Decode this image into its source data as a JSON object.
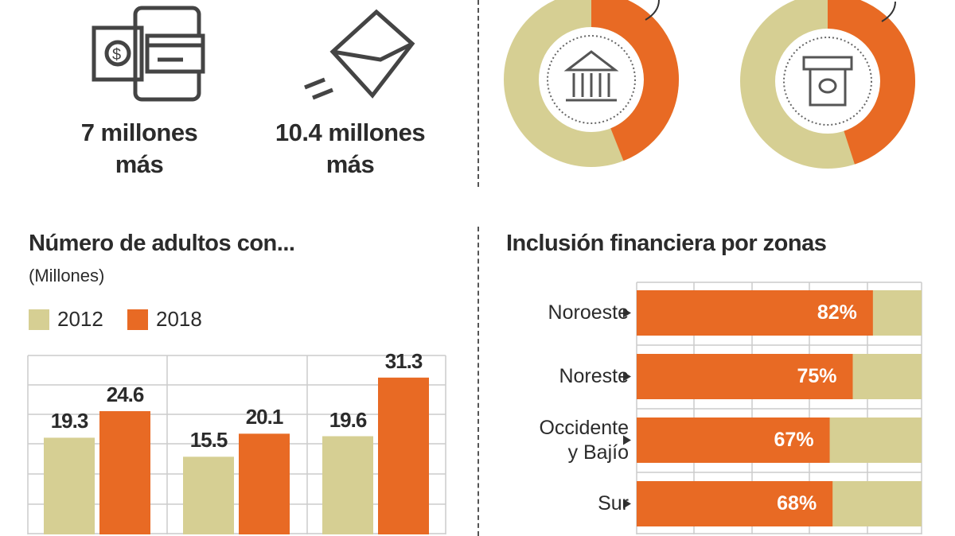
{
  "colors": {
    "c2012": "#d6cf93",
    "c2018": "#e86a24"
  },
  "top": {
    "stat1": {
      "icon": "mobile-payment-icon",
      "line1": "7 millones",
      "line2": "más"
    },
    "stat2": {
      "icon": "envelope-icon",
      "line1": "10.4 millones",
      "line2": "más"
    }
  },
  "chart_data": [
    {
      "type": "pie",
      "title": "",
      "slices": [
        {
          "name": "bank",
          "orange_fraction": 0.44,
          "icon": "bank-icon"
        },
        {
          "name": "atm",
          "orange_fraction": 0.45,
          "icon": "atm-icon"
        }
      ]
    },
    {
      "type": "bar",
      "title": "Número de adultos con...",
      "subtitle": "(Millones)",
      "categories": [
        "",
        "",
        ""
      ],
      "series": [
        {
          "name": "2012",
          "values": [
            19.3,
            15.5,
            19.6
          ]
        },
        {
          "name": "2018",
          "values": [
            24.6,
            20.1,
            31.3
          ]
        }
      ],
      "labels": {
        "2012": [
          "19.3",
          "15.5",
          "19.6"
        ],
        "2018": [
          "24.6",
          "20.1",
          "31.3"
        ]
      },
      "grid": true
    },
    {
      "type": "bar",
      "orientation": "horizontal",
      "title": "Inclusión financiera por zonas",
      "categories": [
        "Noroeste",
        "Noreste",
        "Occidente y Bajío",
        "Sur"
      ],
      "category_lines": [
        [
          "Noroeste"
        ],
        [
          "Noreste"
        ],
        [
          "Occidente",
          "y Bajío"
        ],
        [
          "Sur"
        ]
      ],
      "values": [
        82,
        75,
        67,
        68
      ],
      "labels": [
        "82%",
        "75%",
        "67%",
        "68%"
      ],
      "xlim": [
        0,
        100
      ],
      "grid": true
    }
  ]
}
